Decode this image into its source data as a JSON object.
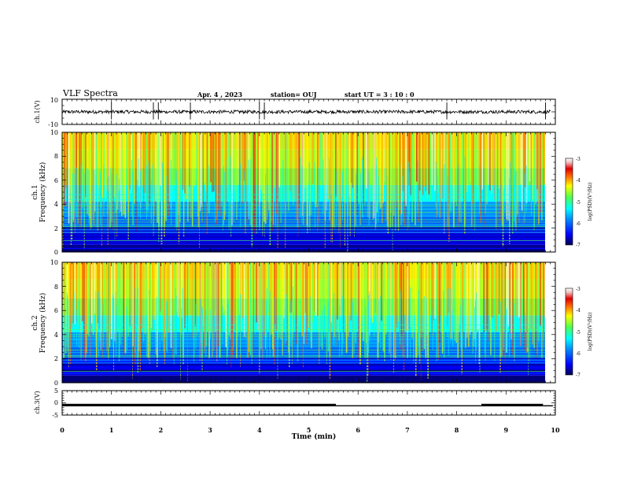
{
  "header": {
    "title": "VLF Spectra",
    "date": "Apr. 4 , 2023",
    "station": "station= OUJ",
    "start": "start  UT =  3 : 10 : 0"
  },
  "chart_data": [
    {
      "type": "line",
      "panel": "ch1-waveform",
      "ylabel": "ch.1(V)",
      "ylim": [
        -10,
        10
      ],
      "yticks": [
        "10",
        "-10"
      ],
      "xlim": [
        0,
        10
      ],
      "baseline": 0,
      "spikes_min": [
        1.0,
        1.85,
        1.95,
        2.6,
        4.0,
        4.1,
        7.8,
        9.8
      ]
    },
    {
      "type": "heatmap",
      "panel": "ch1-spectrogram",
      "ylabel": [
        "ch.1",
        "Frequency (kHz)"
      ],
      "ylim": [
        0,
        10
      ],
      "yticks": [
        "10",
        "8",
        "6",
        "4",
        "2",
        "0"
      ],
      "xlim": [
        0,
        10
      ],
      "colorbar": {
        "label": "log(PSD)(V²/Hz)",
        "range": [
          -7,
          -3
        ],
        "ticks": [
          "-3",
          "-4",
          "-5",
          "-6",
          "-7"
        ]
      }
    },
    {
      "type": "heatmap",
      "panel": "ch2-spectrogram",
      "ylabel": [
        "ch.2",
        "Frequency (kHz)"
      ],
      "ylim": [
        0,
        10
      ],
      "yticks": [
        "10",
        "8",
        "6",
        "4",
        "2",
        "0"
      ],
      "xlim": [
        0,
        10
      ],
      "colorbar": {
        "label": "log(PSD)(V²/Hz)",
        "range": [
          -7,
          -3
        ],
        "ticks": [
          "-3",
          "-4",
          "-5",
          "-6",
          "-7"
        ]
      }
    },
    {
      "type": "line",
      "panel": "ch3-signal",
      "ylabel": "ch.3(V)",
      "ylim": [
        -5,
        5
      ],
      "yticks": [
        "5",
        "0",
        "-5"
      ],
      "xlim": [
        0,
        10
      ],
      "xlabel": "Time  (min)",
      "xticks": [
        "0",
        "1",
        "2",
        "3",
        "4",
        "5",
        "6",
        "7",
        "8",
        "9",
        "10"
      ],
      "segments": [
        {
          "x": [
            0,
            5.55
          ],
          "y": -0.9
        },
        {
          "x": [
            5.55,
            8.5
          ],
          "y": -1.2
        },
        {
          "x": [
            8.5,
            9.75
          ],
          "y": -0.9
        },
        {
          "x": [
            9.75,
            9.95
          ],
          "y": -1.2
        }
      ]
    }
  ],
  "colors": {
    "cmap": [
      "#000060",
      "#0000ff",
      "#0080ff",
      "#00ffff",
      "#80ff80",
      "#ffff00",
      "#ff8000",
      "#ff0000",
      "#e8a8a8",
      "#ffffff"
    ]
  }
}
